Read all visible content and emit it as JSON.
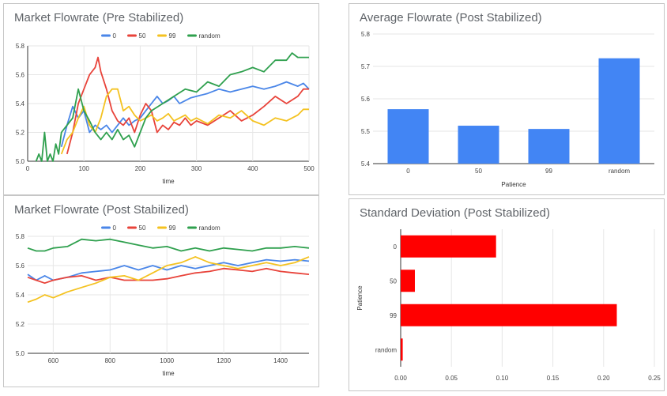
{
  "panels": {
    "pre": {
      "title": "Market Flowrate (Pre Stabilized)",
      "xlabel": "time",
      "xlim": [
        0,
        500
      ],
      "ylim": [
        5.0,
        5.8
      ],
      "xticks": [
        0,
        100,
        200,
        300,
        400,
        500
      ],
      "yticks": [
        "5.0",
        "5.2",
        "5.4",
        "5.6",
        "5.8"
      ]
    },
    "post": {
      "title": "Market Flowrate (Post Stabilized)",
      "xlabel": "time",
      "xlim": [
        510,
        1500
      ],
      "ylim": [
        5.0,
        5.8
      ],
      "xticks": [
        600,
        800,
        1000,
        1200,
        1400
      ],
      "yticks": [
        "5.0",
        "5.2",
        "5.4",
        "5.6",
        "5.8"
      ]
    },
    "avg": {
      "title": "Average Flowrate (Post Stabilized)",
      "xlabel": "Patience",
      "yticks": [
        "5.4",
        "5.5",
        "5.6",
        "5.7",
        "5.8"
      ]
    },
    "std": {
      "title": "Standard Deviation (Post Stabilized)",
      "ylabel": "Patience",
      "xticks": [
        "0.00",
        "0.05",
        "0.10",
        "0.15",
        "0.20",
        "0.25"
      ]
    }
  },
  "legend": [
    "0",
    "50",
    "99",
    "random"
  ],
  "colors": {
    "0": "#4a86e8",
    "50": "#e8433a",
    "99": "#f4c220",
    "random": "#2fa04e",
    "bar_blue": "#4285f4",
    "bar_red": "#ff0000",
    "grid": "#e6e6e6"
  },
  "chart_data": [
    {
      "type": "line",
      "title": "Market Flowrate (Pre Stabilized)",
      "xlabel": "time",
      "xlim": [
        0,
        500
      ],
      "ylim": [
        5.0,
        5.8
      ],
      "grid": true,
      "legend_position": "top",
      "series": [
        {
          "name": "0",
          "x": [
            60,
            70,
            80,
            90,
            100,
            110,
            120,
            130,
            140,
            150,
            160,
            170,
            180,
            190,
            200,
            210,
            220,
            230,
            240,
            250,
            260,
            270,
            280,
            290,
            300,
            320,
            340,
            360,
            380,
            400,
            420,
            440,
            460,
            480,
            490,
            500
          ],
          "y": [
            5.1,
            5.25,
            5.38,
            5.3,
            5.35,
            5.2,
            5.25,
            5.22,
            5.25,
            5.2,
            5.25,
            5.3,
            5.25,
            5.28,
            5.3,
            5.35,
            5.4,
            5.45,
            5.4,
            5.42,
            5.45,
            5.4,
            5.42,
            5.44,
            5.45,
            5.47,
            5.5,
            5.48,
            5.5,
            5.52,
            5.5,
            5.52,
            5.55,
            5.52,
            5.54,
            5.5
          ]
        },
        {
          "name": "50",
          "x": [
            70,
            80,
            90,
            100,
            110,
            120,
            125,
            130,
            140,
            150,
            160,
            170,
            180,
            190,
            200,
            210,
            220,
            230,
            240,
            250,
            260,
            270,
            280,
            290,
            300,
            320,
            340,
            360,
            380,
            400,
            420,
            440,
            460,
            480,
            490,
            500
          ],
          "y": [
            5.05,
            5.2,
            5.4,
            5.5,
            5.6,
            5.65,
            5.72,
            5.62,
            5.5,
            5.35,
            5.28,
            5.25,
            5.3,
            5.2,
            5.32,
            5.4,
            5.35,
            5.2,
            5.25,
            5.22,
            5.27,
            5.25,
            5.3,
            5.25,
            5.28,
            5.25,
            5.3,
            5.35,
            5.28,
            5.32,
            5.38,
            5.45,
            5.4,
            5.45,
            5.5,
            5.5
          ]
        },
        {
          "name": "99",
          "x": [
            60,
            70,
            80,
            90,
            100,
            110,
            120,
            130,
            140,
            150,
            160,
            170,
            180,
            190,
            200,
            210,
            220,
            230,
            240,
            250,
            260,
            270,
            280,
            290,
            300,
            320,
            340,
            360,
            380,
            400,
            420,
            440,
            460,
            480,
            490,
            500
          ],
          "y": [
            5.05,
            5.15,
            5.2,
            5.3,
            5.38,
            5.25,
            5.2,
            5.3,
            5.45,
            5.5,
            5.5,
            5.35,
            5.38,
            5.32,
            5.28,
            5.3,
            5.32,
            5.28,
            5.3,
            5.33,
            5.28,
            5.3,
            5.32,
            5.28,
            5.3,
            5.26,
            5.32,
            5.3,
            5.35,
            5.28,
            5.25,
            5.3,
            5.28,
            5.32,
            5.36,
            5.36
          ]
        },
        {
          "name": "random",
          "x": [
            15,
            20,
            25,
            30,
            35,
            40,
            45,
            50,
            55,
            60,
            70,
            80,
            90,
            100,
            110,
            120,
            130,
            140,
            150,
            160,
            170,
            180,
            190,
            200,
            210,
            220,
            240,
            260,
            280,
            300,
            320,
            340,
            360,
            380,
            400,
            420,
            440,
            460,
            470,
            480,
            490,
            500
          ],
          "y": [
            5.0,
            5.05,
            5.0,
            5.2,
            5.0,
            5.05,
            5.0,
            5.12,
            5.05,
            5.2,
            5.25,
            5.3,
            5.5,
            5.35,
            5.28,
            5.2,
            5.15,
            5.2,
            5.15,
            5.22,
            5.15,
            5.18,
            5.1,
            5.2,
            5.3,
            5.35,
            5.4,
            5.45,
            5.5,
            5.48,
            5.55,
            5.52,
            5.6,
            5.62,
            5.65,
            5.62,
            5.7,
            5.7,
            5.75,
            5.72,
            5.72,
            5.72
          ]
        }
      ]
    },
    {
      "type": "line",
      "title": "Market Flowrate (Post Stabilized)",
      "xlabel": "time",
      "xlim": [
        510,
        1500
      ],
      "ylim": [
        5.0,
        5.8
      ],
      "grid": true,
      "legend_position": "top",
      "series": [
        {
          "name": "0",
          "x": [
            510,
            540,
            570,
            600,
            650,
            700,
            750,
            800,
            850,
            900,
            950,
            1000,
            1050,
            1100,
            1150,
            1200,
            1250,
            1300,
            1350,
            1400,
            1450,
            1500
          ],
          "y": [
            5.54,
            5.5,
            5.53,
            5.5,
            5.52,
            5.55,
            5.56,
            5.57,
            5.6,
            5.57,
            5.6,
            5.57,
            5.6,
            5.58,
            5.6,
            5.62,
            5.6,
            5.62,
            5.64,
            5.63,
            5.64,
            5.63
          ]
        },
        {
          "name": "50",
          "x": [
            510,
            540,
            570,
            600,
            650,
            700,
            750,
            800,
            850,
            900,
            950,
            1000,
            1050,
            1100,
            1150,
            1200,
            1250,
            1300,
            1350,
            1400,
            1450,
            1500
          ],
          "y": [
            5.52,
            5.5,
            5.48,
            5.5,
            5.52,
            5.53,
            5.5,
            5.52,
            5.5,
            5.5,
            5.5,
            5.51,
            5.53,
            5.55,
            5.56,
            5.58,
            5.57,
            5.56,
            5.58,
            5.56,
            5.55,
            5.54
          ]
        },
        {
          "name": "99",
          "x": [
            510,
            540,
            570,
            600,
            650,
            700,
            750,
            800,
            850,
            900,
            950,
            1000,
            1050,
            1100,
            1150,
            1200,
            1250,
            1300,
            1350,
            1400,
            1450,
            1500
          ],
          "y": [
            5.35,
            5.37,
            5.4,
            5.38,
            5.42,
            5.45,
            5.48,
            5.52,
            5.53,
            5.5,
            5.55,
            5.6,
            5.62,
            5.66,
            5.62,
            5.6,
            5.58,
            5.6,
            5.62,
            5.6,
            5.62,
            5.66
          ]
        },
        {
          "name": "random",
          "x": [
            510,
            540,
            570,
            600,
            650,
            700,
            750,
            800,
            850,
            900,
            950,
            1000,
            1050,
            1100,
            1150,
            1200,
            1250,
            1300,
            1350,
            1400,
            1450,
            1500
          ],
          "y": [
            5.72,
            5.7,
            5.7,
            5.72,
            5.73,
            5.78,
            5.77,
            5.78,
            5.76,
            5.74,
            5.72,
            5.73,
            5.7,
            5.72,
            5.7,
            5.72,
            5.71,
            5.7,
            5.72,
            5.72,
            5.73,
            5.72
          ]
        }
      ]
    },
    {
      "type": "bar",
      "title": "Average Flowrate (Post Stabilized)",
      "xlabel": "Patience",
      "categories": [
        "0",
        "50",
        "99",
        "random"
      ],
      "values": [
        5.568,
        5.517,
        5.507,
        5.725
      ],
      "ylim": [
        5.4,
        5.8
      ],
      "grid": true
    },
    {
      "type": "bar",
      "orientation": "horizontal",
      "title": "Standard Deviation (Post Stabilized)",
      "ylabel": "Patience",
      "categories": [
        "0",
        "50",
        "99",
        "random"
      ],
      "values": [
        0.094,
        0.014,
        0.213,
        0.002
      ],
      "xlim": [
        0,
        0.25
      ],
      "grid": true
    }
  ]
}
